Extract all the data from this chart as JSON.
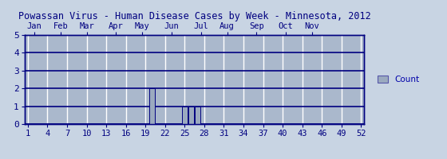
{
  "title": "Powassan Virus - Human Disease Cases by Week - Minnesota, 2012",
  "weeks": [
    1,
    2,
    3,
    4,
    5,
    6,
    7,
    8,
    9,
    10,
    11,
    12,
    13,
    14,
    15,
    16,
    17,
    18,
    19,
    20,
    21,
    22,
    23,
    24,
    25,
    26,
    27,
    28,
    29,
    30,
    31,
    32,
    33,
    34,
    35,
    36,
    37,
    38,
    39,
    40,
    41,
    42,
    43,
    44,
    45,
    46,
    47,
    48,
    49,
    50,
    51,
    52
  ],
  "counts": [
    0,
    0,
    0,
    0,
    0,
    0,
    0,
    0,
    0,
    0,
    0,
    0,
    0,
    0,
    0,
    0,
    0,
    0,
    0,
    2,
    0,
    0,
    0,
    0,
    1,
    1,
    1,
    0,
    0,
    0,
    0,
    0,
    0,
    0,
    0,
    0,
    0,
    0,
    0,
    0,
    0,
    0,
    0,
    0,
    0,
    0,
    0,
    0,
    0,
    0,
    0,
    0
  ],
  "bar_color": "#9baabf",
  "bar_edge_color": "#000080",
  "background_color": "#c8d4e3",
  "plot_bg_color": "#aab8cc",
  "title_color": "#000080",
  "axis_color": "#000080",
  "tick_label_color": "#0000aa",
  "grid_color": "#ffffff",
  "hgrid_color": "#000080",
  "ylim": [
    0,
    5
  ],
  "yticks": [
    0,
    1,
    2,
    3,
    4,
    5
  ],
  "xticks": [
    1,
    4,
    7,
    10,
    13,
    16,
    19,
    22,
    25,
    28,
    31,
    34,
    37,
    40,
    43,
    46,
    49,
    52
  ],
  "month_labels": [
    "Jan",
    "Feb",
    "Mar",
    "Apr",
    "May",
    "Jun",
    "Jul",
    "Aug",
    "Sep",
    "Oct",
    "Nov"
  ],
  "month_week_positions": [
    2.0,
    6.0,
    10.0,
    14.5,
    18.5,
    23.0,
    27.5,
    31.5,
    36.0,
    40.5,
    44.5
  ],
  "legend_label": "Count",
  "legend_color": "#9baabf",
  "legend_edge_color": "#5555aa"
}
